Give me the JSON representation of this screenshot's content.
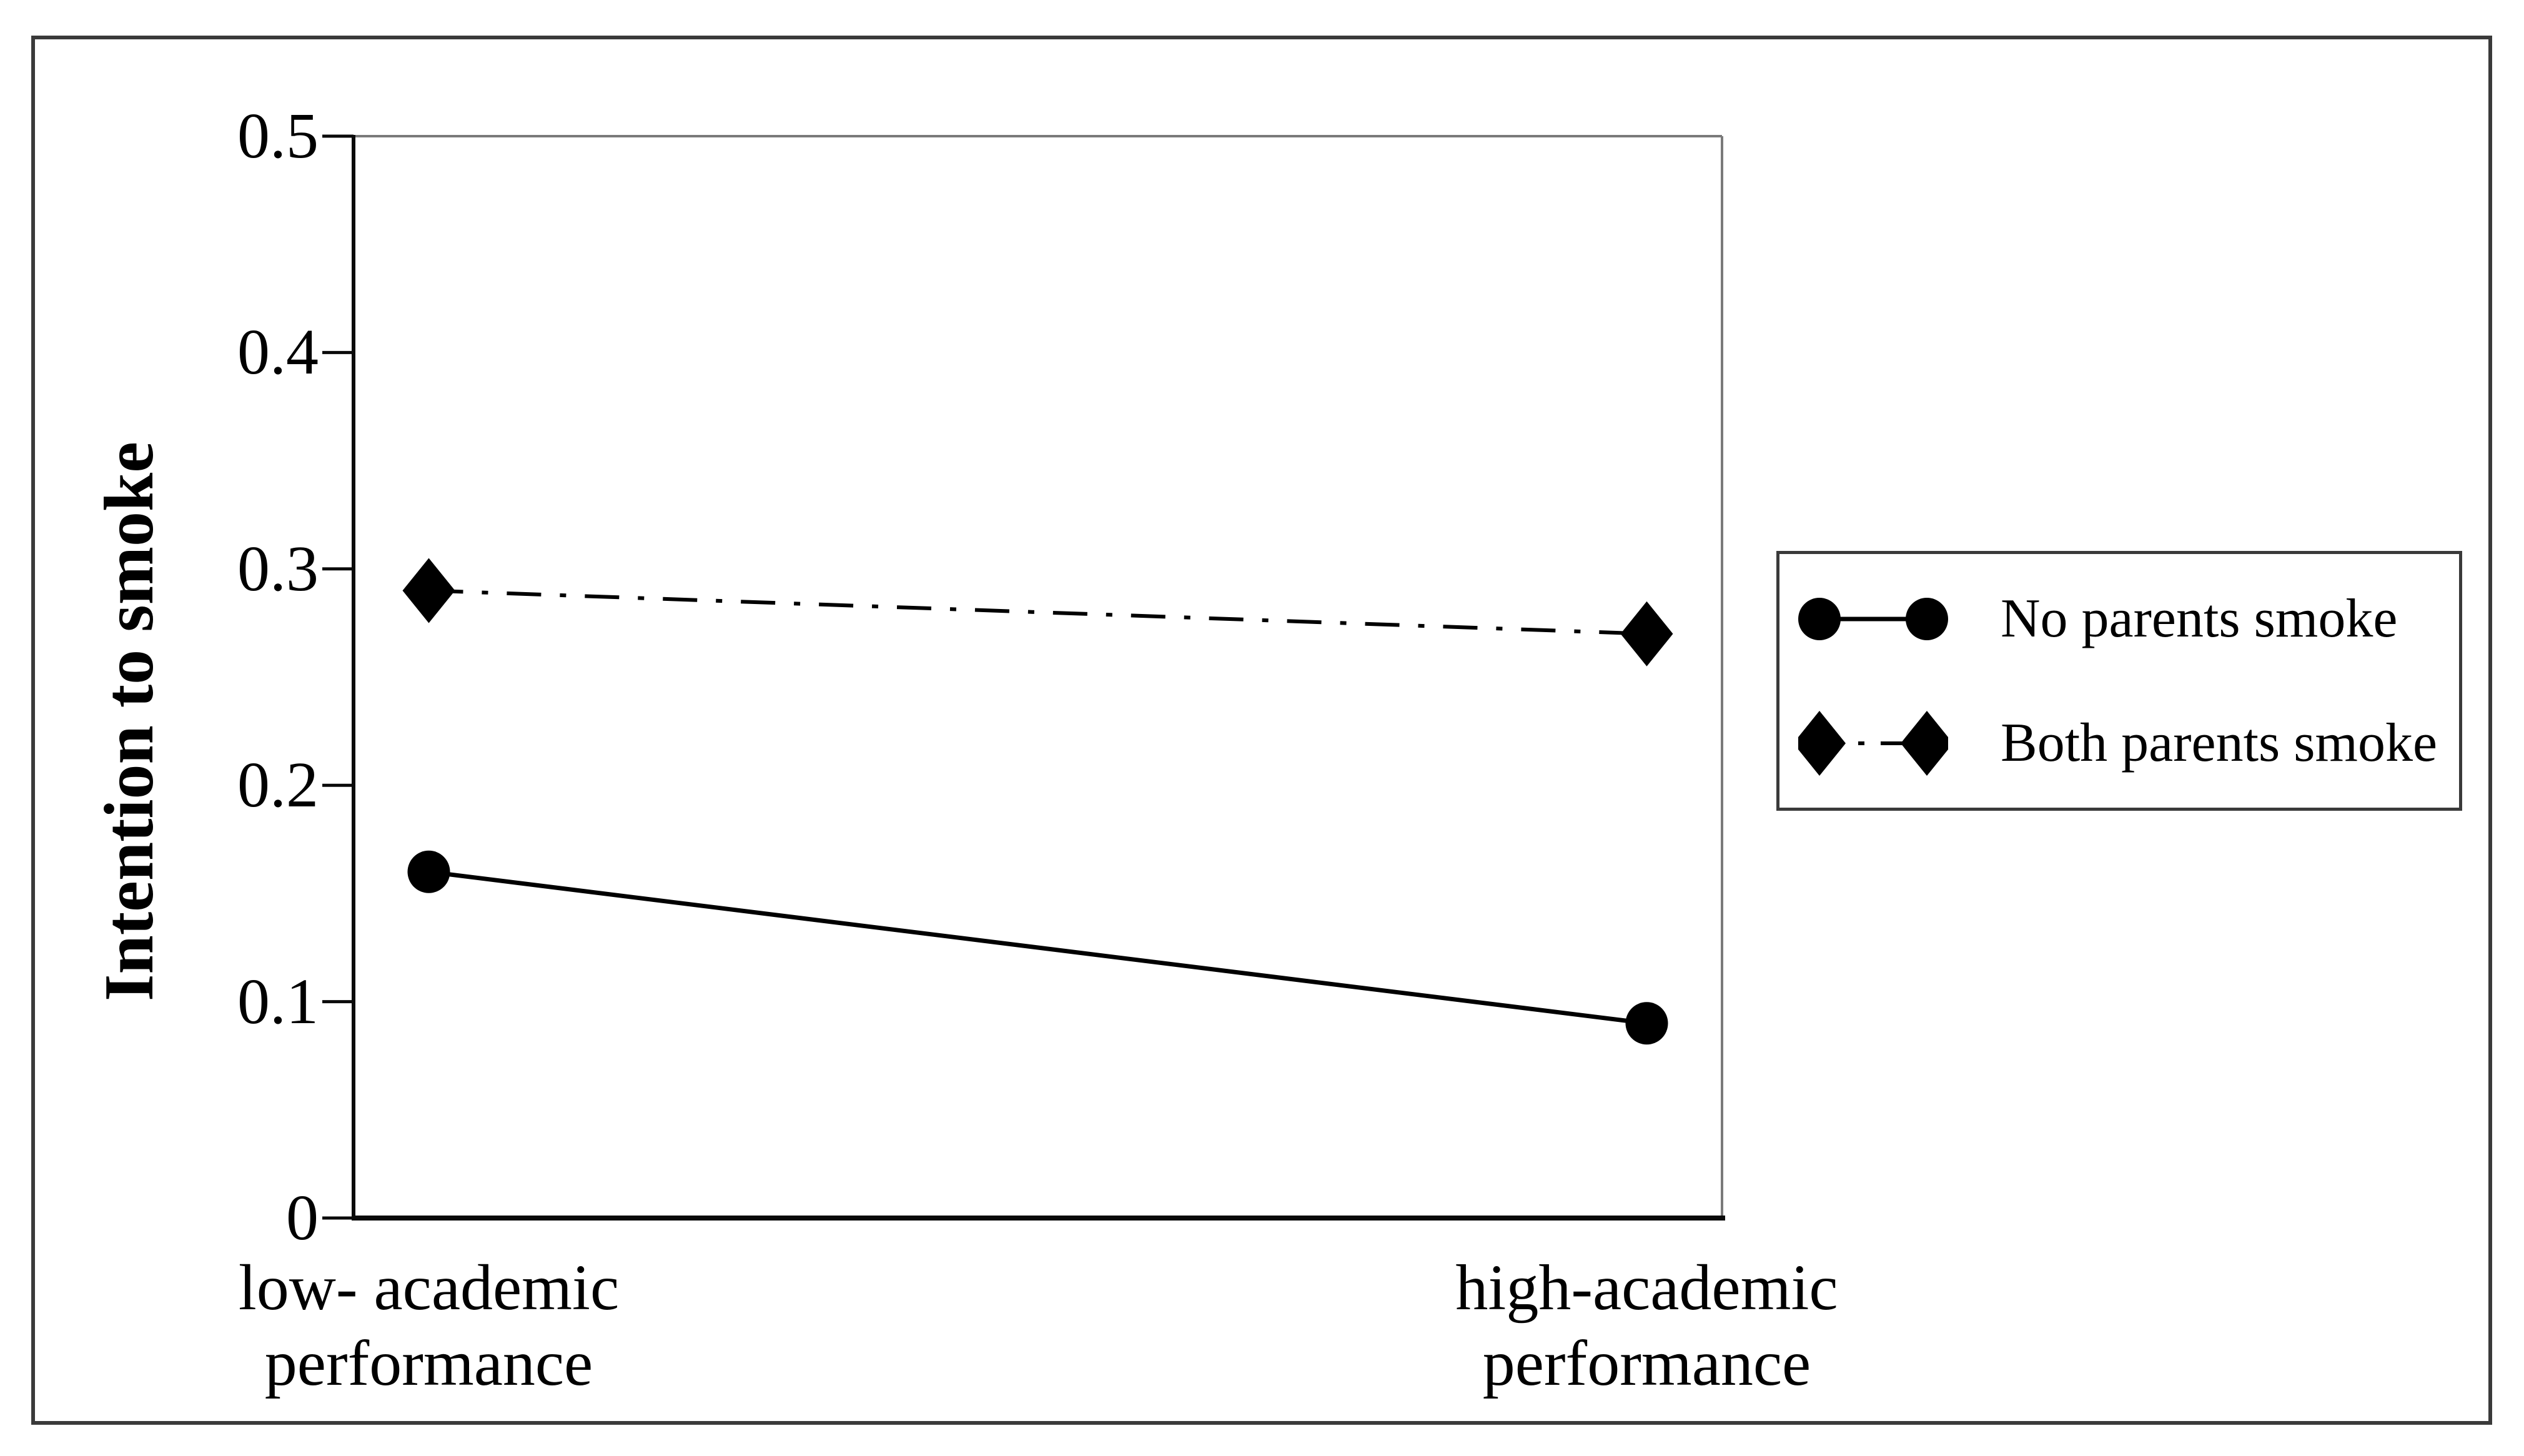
{
  "figure": {
    "background": "#ffffff",
    "frame_color": "#3a3a3a",
    "plot_border_color": "#7a7a7a",
    "axis_color": "#0a0a0a",
    "series_color": "#000000"
  },
  "chart_data": {
    "type": "line",
    "title": "",
    "xlabel": "",
    "ylabel": "Intention to smoke",
    "categories": [
      "low- academic\nperformance",
      "high-academic\nperformance"
    ],
    "series": [
      {
        "name": "No parents smoke",
        "values": [
          0.16,
          0.09
        ],
        "line_style": "solid",
        "marker": "circle",
        "color": "#000000"
      },
      {
        "name": "Both parents smoke",
        "values": [
          0.29,
          0.27
        ],
        "line_style": "dash-dot",
        "marker": "diamond",
        "color": "#000000"
      }
    ],
    "ylim": [
      0,
      0.5
    ],
    "yticks": [
      0,
      0.1,
      0.2,
      0.3,
      0.4,
      0.5
    ],
    "ytick_labels": [
      "0",
      "0.1",
      "0.2",
      "0.3",
      "0.4",
      "0.5"
    ],
    "grid": false,
    "legend_position": "right-of-plot"
  }
}
